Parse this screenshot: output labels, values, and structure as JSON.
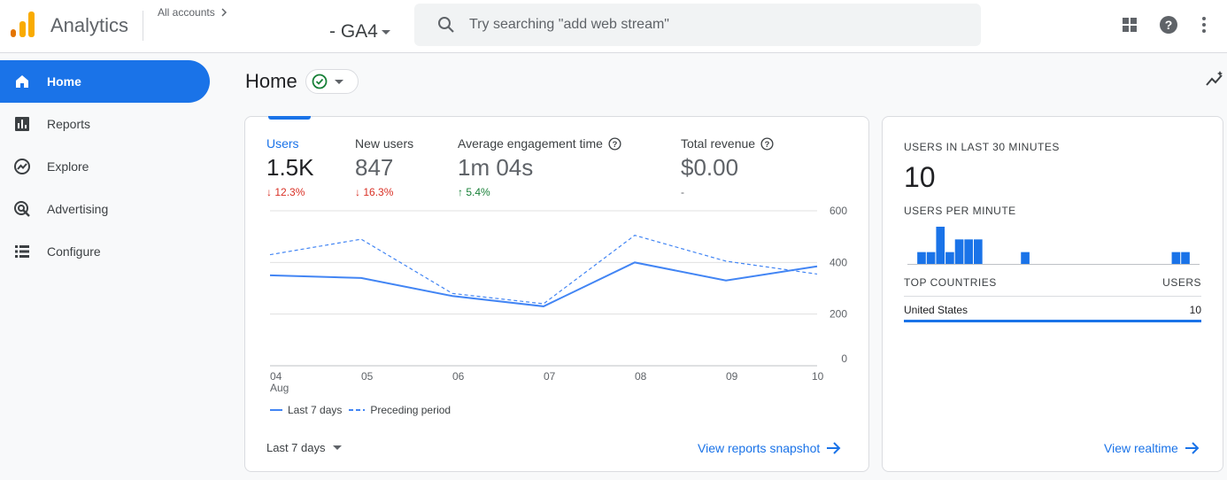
{
  "header": {
    "app_title": "Analytics",
    "all_accounts": "All accounts",
    "property": "- GA4",
    "search_placeholder": "Try searching \"add web stream\""
  },
  "sidebar": {
    "items": [
      {
        "label": "Home",
        "icon": "home-icon",
        "active": true
      },
      {
        "label": "Reports",
        "icon": "reports-icon"
      },
      {
        "label": "Explore",
        "icon": "explore-icon"
      },
      {
        "label": "Advertising",
        "icon": "advertising-icon"
      },
      {
        "label": "Configure",
        "icon": "configure-icon"
      }
    ]
  },
  "main": {
    "title": "Home"
  },
  "metrics": [
    {
      "label": "Users",
      "value": "1.5K",
      "change": "12.3%",
      "direction": "down"
    },
    {
      "label": "New users",
      "value": "847",
      "change": "16.3%",
      "direction": "down"
    },
    {
      "label": "Average engagement time",
      "value": "1m 04s",
      "change": "5.4%",
      "direction": "up"
    },
    {
      "label": "Total revenue",
      "value": "$0.00",
      "change": "-",
      "direction": "none"
    }
  ],
  "chart_data": {
    "type": "line",
    "x": [
      "04",
      "05",
      "06",
      "07",
      "08",
      "09",
      "10"
    ],
    "x_sublabel": "Aug",
    "y_ticks": [
      "600",
      "400",
      "200",
      "0"
    ],
    "ylim": [
      0,
      600
    ],
    "grid": true,
    "legend_position": "bottom-left",
    "series": [
      {
        "name": "Last 7 days",
        "style": "solid",
        "color": "#4285f4",
        "values": [
          350,
          340,
          270,
          230,
          400,
          330,
          385
        ]
      },
      {
        "name": "Preceding period",
        "style": "dashed",
        "color": "#4285f4",
        "values": [
          430,
          490,
          280,
          240,
          505,
          405,
          355
        ]
      }
    ]
  },
  "range_select": "Last 7 days",
  "view_snapshot": "View reports snapshot",
  "realtime": {
    "users_caption": "USERS IN LAST 30 MINUTES",
    "users_value": "10",
    "per_minute_caption": "USERS PER MINUTE",
    "per_minute": [
      0,
      1,
      1,
      3,
      1,
      2,
      2,
      2,
      0,
      0,
      0,
      0,
      1,
      0,
      0,
      0,
      0,
      0,
      0,
      0,
      0,
      0,
      0,
      0,
      0,
      0,
      0,
      0,
      1,
      1,
      0
    ],
    "countries_header": "TOP COUNTRIES",
    "users_header": "USERS",
    "countries": [
      {
        "name": "United States",
        "users": "10"
      }
    ],
    "view_realtime": "View realtime"
  },
  "colors": {
    "accent": "#1a73e8",
    "negative": "#d93025",
    "positive": "#188038"
  }
}
